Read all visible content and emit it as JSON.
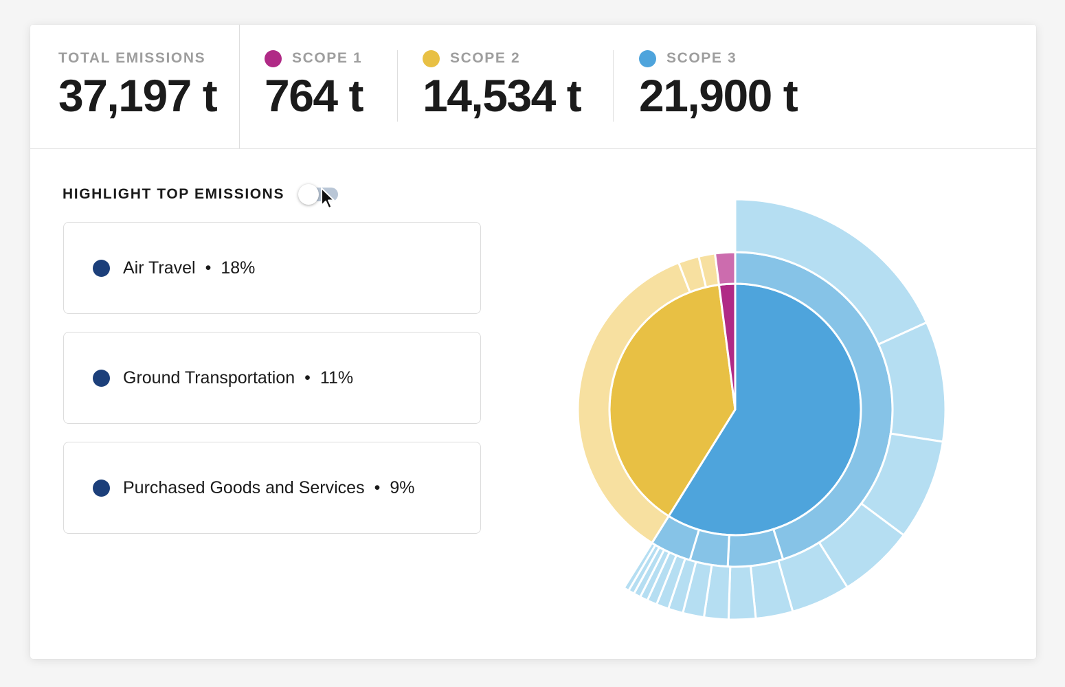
{
  "stats": {
    "total": {
      "label": "TOTAL EMISSIONS",
      "value": "37,197 t"
    },
    "scopes": [
      {
        "label": "SCOPE 1",
        "value": "764 t",
        "color": "#b02a86"
      },
      {
        "label": "SCOPE 2",
        "value": "14,534 t",
        "color": "#e8c044"
      },
      {
        "label": "SCOPE 3",
        "value": "21,900 t",
        "color": "#4ea4dc"
      }
    ]
  },
  "highlight": {
    "label": "HIGHLIGHT TOP EMISSIONS",
    "toggle_on": false
  },
  "top_emissions": [
    {
      "name": "Air Travel",
      "percent": "18%"
    },
    {
      "name": "Ground Transportation",
      "percent": "11%"
    },
    {
      "name": "Purchased Goods and Services",
      "percent": "9%"
    }
  ],
  "colors": {
    "accent_dot": "#1c3f7a",
    "scope1_inner": "#b02a86",
    "scope1_outer": "#cc6cae",
    "scope2_inner": "#e8c044",
    "scope2_outer": "#f7e0a0",
    "scope3_inner": "#4ea4dc",
    "scope3_middle": "#86c3e7",
    "scope3_outer": "#b5def2"
  },
  "chart_data": {
    "type": "sunburst",
    "rings": [
      {
        "name": "scope",
        "segments": [
          {
            "label": "Scope 3",
            "value": 21900,
            "color_key": "scope3_inner"
          },
          {
            "label": "Scope 2",
            "value": 14534,
            "color_key": "scope2_inner"
          },
          {
            "label": "Scope 1",
            "value": 764,
            "color_key": "scope1_inner"
          }
        ]
      },
      {
        "name": "category",
        "segments": [
          {
            "scope": 3,
            "value": 16770,
            "color_key": "scope3_middle"
          },
          {
            "scope": 3,
            "value": 2110,
            "color_key": "scope3_middle"
          },
          {
            "scope": 3,
            "value": 1450,
            "color_key": "scope3_middle"
          },
          {
            "scope": 3,
            "value": 1570,
            "color_key": "scope3_middle"
          },
          {
            "scope": 2,
            "value": 13120,
            "color_key": "scope2_outer"
          },
          {
            "scope": 2,
            "value": 790,
            "color_key": "scope2_outer"
          },
          {
            "scope": 2,
            "value": 624,
            "color_key": "scope2_outer"
          },
          {
            "scope": 1,
            "value": 764,
            "color_key": "scope1_outer"
          }
        ]
      },
      {
        "name": "subcategory",
        "segments": [
          {
            "value": 6700
          },
          {
            "value": 3400
          },
          {
            "value": 2850
          },
          {
            "value": 2150
          },
          {
            "value": 1670
          },
          {
            "value": 1050
          },
          {
            "value": 760
          },
          {
            "value": 690
          },
          {
            "value": 600
          },
          {
            "value": 420
          },
          {
            "value": 350
          },
          {
            "value": 280
          },
          {
            "value": 220
          },
          {
            "value": 200
          },
          {
            "value": 170
          },
          {
            "value": 150
          }
        ]
      }
    ]
  }
}
